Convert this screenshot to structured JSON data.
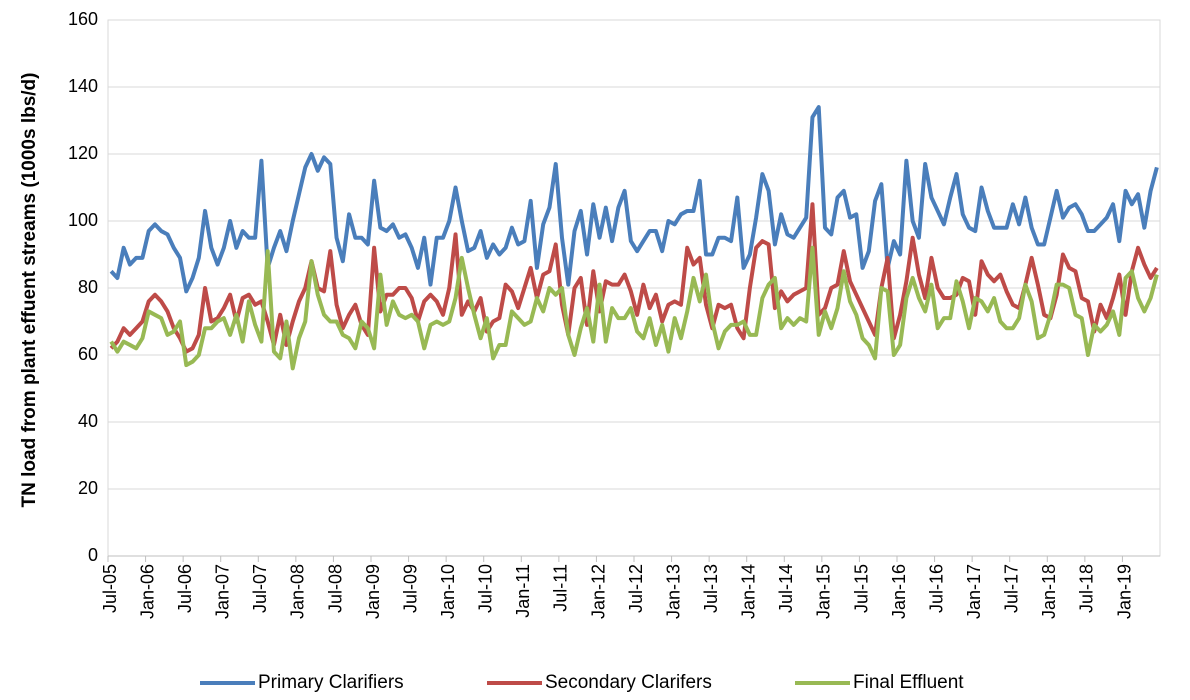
{
  "chart_data": {
    "type": "line",
    "ylabel": "TN load from plant effuent streams (1000s lbs/d)",
    "categories": [
      "Jul-05",
      null,
      null,
      null,
      null,
      null,
      "Jan-06",
      null,
      null,
      null,
      null,
      null,
      "Jul-06",
      null,
      null,
      null,
      null,
      null,
      "Jan-07",
      null,
      null,
      null,
      null,
      null,
      "Jul-07",
      null,
      null,
      null,
      null,
      null,
      "Jan-08",
      null,
      null,
      null,
      null,
      null,
      "Jul-08",
      null,
      null,
      null,
      null,
      null,
      "Jan-09",
      null,
      null,
      null,
      null,
      null,
      "Jul-09",
      null,
      null,
      null,
      null,
      null,
      "Jan-10",
      null,
      null,
      null,
      null,
      null,
      "Jul-10",
      null,
      null,
      null,
      null,
      null,
      "Jan-11",
      null,
      null,
      null,
      null,
      null,
      "Jul-11",
      null,
      null,
      null,
      null,
      null,
      "Jan-12",
      null,
      null,
      null,
      null,
      null,
      "Jul-12",
      null,
      null,
      null,
      null,
      null,
      "Jan-13",
      null,
      null,
      null,
      null,
      null,
      "Jul-13",
      null,
      null,
      null,
      null,
      null,
      "Jan-14",
      null,
      null,
      null,
      null,
      null,
      "Jul-14",
      null,
      null,
      null,
      null,
      null,
      "Jan-15",
      null,
      null,
      null,
      null,
      null,
      "Jul-15",
      null,
      null,
      null,
      null,
      null,
      "Jan-16",
      null,
      null,
      null,
      null,
      null,
      "Jul-16",
      null,
      null,
      null,
      null,
      null,
      "Jan-17",
      null,
      null,
      null,
      null,
      null,
      "Jul-17",
      null,
      null,
      null,
      null,
      null,
      "Jan-18",
      null,
      null,
      null,
      null,
      null,
      "Jul-18",
      null,
      null,
      null,
      null,
      null,
      "Jan-19",
      null,
      null,
      null,
      null,
      null
    ],
    "series": [
      {
        "name": "Primary Clarifiers",
        "color": "#4a7ebb",
        "values": [
          85,
          83,
          92,
          87,
          89,
          89,
          97,
          99,
          97,
          96,
          92,
          89,
          79,
          83,
          89,
          103,
          92,
          87,
          92,
          100,
          92,
          97,
          95,
          95,
          118,
          86,
          92,
          97,
          91,
          100,
          108,
          116,
          120,
          115,
          119,
          117,
          95,
          88,
          102,
          95,
          95,
          93,
          112,
          98,
          97,
          99,
          95,
          96,
          92,
          86,
          95,
          81,
          95,
          95,
          100,
          110,
          100,
          91,
          92,
          97,
          89,
          93,
          90,
          92,
          98,
          93,
          94,
          106,
          86,
          99,
          104,
          117,
          95,
          81,
          97,
          103,
          90,
          105,
          95,
          104,
          94,
          104,
          109,
          94,
          91,
          94,
          97,
          97,
          91,
          100,
          99,
          102,
          103,
          103,
          112,
          90,
          90,
          95,
          95,
          94,
          107,
          86,
          90,
          101,
          114,
          109,
          93,
          102,
          96,
          95,
          98,
          101,
          131,
          134,
          98,
          96,
          107,
          109,
          101,
          102,
          86,
          91,
          106,
          111,
          86,
          94,
          90,
          118,
          100,
          95,
          117,
          107,
          103,
          99,
          107,
          114,
          102,
          98,
          97,
          110,
          103,
          98,
          98,
          98,
          105,
          99,
          107,
          98,
          93,
          93,
          101,
          109,
          101,
          104,
          105,
          102,
          97,
          97,
          99,
          101,
          105,
          94,
          109,
          105,
          108,
          98,
          109,
          116
        ]
      },
      {
        "name": "Secondary Clarifers",
        "color": "#be4b48",
        "values": [
          62,
          64,
          68,
          66,
          68,
          70,
          76,
          78,
          76,
          73,
          68,
          65,
          61,
          62,
          66,
          80,
          70,
          71,
          74,
          78,
          70,
          77,
          78,
          75,
          76,
          70,
          63,
          72,
          63,
          70,
          76,
          80,
          88,
          80,
          79,
          91,
          75,
          68,
          72,
          75,
          69,
          66,
          92,
          73,
          78,
          78,
          80,
          80,
          77,
          70,
          76,
          78,
          76,
          72,
          80,
          96,
          72,
          76,
          73,
          77,
          67,
          70,
          71,
          81,
          79,
          74,
          80,
          86,
          77,
          84,
          85,
          93,
          75,
          66,
          80,
          83,
          69,
          85,
          73,
          82,
          81,
          81,
          84,
          79,
          72,
          81,
          74,
          78,
          70,
          75,
          76,
          75,
          92,
          87,
          89,
          75,
          68,
          75,
          74,
          75,
          68,
          65,
          80,
          92,
          94,
          93,
          74,
          79,
          76,
          78,
          79,
          80,
          105,
          72,
          74,
          80,
          81,
          91,
          82,
          78,
          74,
          70,
          66,
          80,
          89,
          65,
          72,
          82,
          95,
          84,
          77,
          89,
          80,
          77,
          77,
          78,
          83,
          82,
          72,
          88,
          84,
          82,
          84,
          79,
          75,
          74,
          81,
          89,
          81,
          72,
          71,
          78,
          90,
          86,
          85,
          77,
          76,
          67,
          75,
          71,
          77,
          84,
          72,
          85,
          92,
          87,
          83,
          86
        ]
      },
      {
        "name": "Final Effluent",
        "color": "#98b954",
        "values": [
          64,
          61,
          64,
          63,
          62,
          65,
          73,
          72,
          71,
          66,
          67,
          70,
          57,
          58,
          60,
          68,
          68,
          70,
          71,
          66,
          72,
          64,
          76,
          69,
          64,
          91,
          61,
          59,
          70,
          56,
          65,
          70,
          88,
          78,
          72,
          70,
          70,
          66,
          65,
          62,
          70,
          68,
          62,
          84,
          69,
          76,
          72,
          71,
          72,
          70,
          62,
          69,
          70,
          69,
          70,
          77,
          89,
          80,
          72,
          65,
          71,
          59,
          63,
          63,
          73,
          71,
          69,
          70,
          77,
          73,
          80,
          78,
          80,
          66,
          60,
          68,
          74,
          64,
          81,
          64,
          74,
          71,
          71,
          74,
          67,
          65,
          71,
          63,
          69,
          61,
          71,
          65,
          73,
          83,
          76,
          84,
          70,
          62,
          67,
          69,
          69,
          70,
          66,
          66,
          77,
          81,
          83,
          68,
          71,
          69,
          71,
          70,
          92,
          66,
          73,
          68,
          74,
          85,
          76,
          72,
          65,
          63,
          59,
          80,
          79,
          60,
          63,
          77,
          83,
          77,
          73,
          81,
          68,
          71,
          71,
          82,
          76,
          68,
          77,
          76,
          73,
          77,
          70,
          68,
          68,
          71,
          81,
          76,
          65,
          66,
          72,
          81,
          81,
          80,
          72,
          71,
          60,
          69,
          67,
          69,
          73,
          66,
          83,
          85,
          77,
          73,
          77,
          84
        ]
      }
    ],
    "ylim": [
      0,
      160
    ],
    "yticks": [
      0,
      20,
      40,
      60,
      80,
      100,
      120,
      140,
      160
    ],
    "grid": true
  }
}
